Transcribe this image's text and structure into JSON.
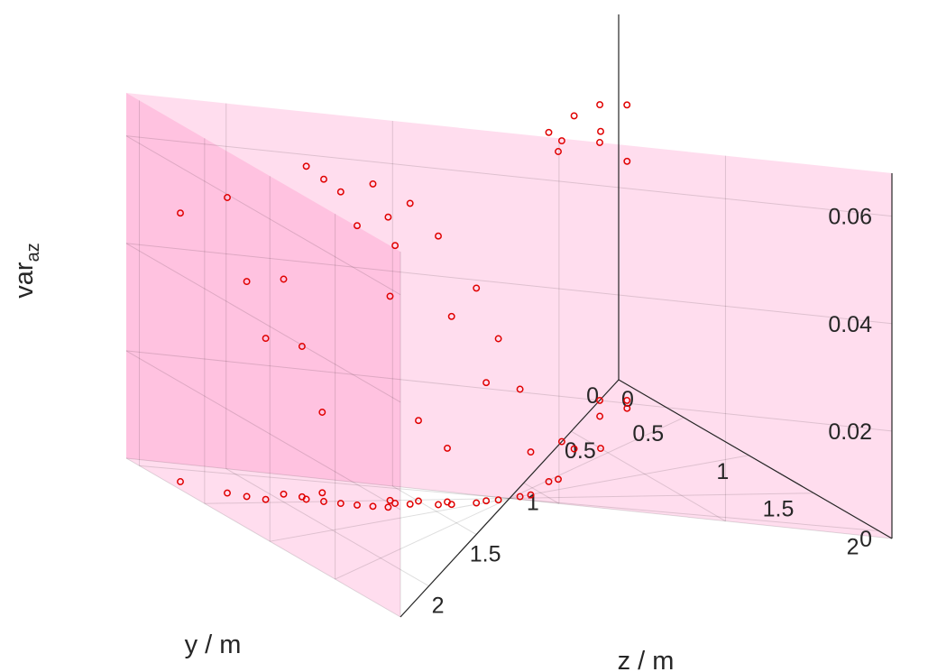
{
  "chart_data": {
    "type": "scatter",
    "title": "",
    "xlabel": "z / m",
    "ylabel": "y / m",
    "zlabel_base": "var",
    "zlabel_sub": "az",
    "xlim": [
      0,
      2.3
    ],
    "ylim": [
      0,
      2.1
    ],
    "zlim": [
      0,
      0.068
    ],
    "x_ticks": [
      "0",
      "0.5",
      "1",
      "1.5",
      "2"
    ],
    "y_ticks": [
      "0",
      "0.5",
      "1",
      "1.5",
      "2"
    ],
    "z_ticks": [
      "0",
      "0.02",
      "0.04",
      "0.06"
    ],
    "grid": true,
    "marker_color": "#e00000",
    "projection_wall_color": "#ff66b3",
    "series": [
      {
        "points": [
          [
            2.25,
            1.8,
            0.05
          ],
          [
            2.05,
            1.55,
            0.03
          ],
          [
            2.1,
            1.6,
            0.04
          ],
          [
            2.15,
            1.65,
            0.055
          ],
          [
            1.9,
            1.55,
            0.062
          ],
          [
            1.85,
            1.5,
            0.06
          ],
          [
            1.8,
            1.45,
            0.058
          ],
          [
            1.75,
            1.4,
            0.052
          ],
          [
            1.7,
            1.35,
            0.06
          ],
          [
            1.65,
            1.3,
            0.054
          ],
          [
            1.95,
            1.65,
            0.04
          ],
          [
            1.9,
            1.6,
            0.028
          ],
          [
            1.6,
            1.4,
            0.048
          ],
          [
            1.55,
            1.35,
            0.056
          ],
          [
            1.45,
            1.25,
            0.05
          ],
          [
            1.6,
            1.5,
            0.038
          ],
          [
            1.4,
            1.2,
            0.035
          ],
          [
            1.3,
            1.1,
            0.04
          ],
          [
            1.2,
            1.1,
            0.03
          ],
          [
            1.8,
            1.7,
            0.015
          ],
          [
            1.5,
            1.45,
            0.015
          ],
          [
            1.25,
            1.2,
            0.022
          ],
          [
            1.1,
            1.05,
            0.02
          ],
          [
            1.4,
            1.35,
            0.01
          ],
          [
            1.05,
            1.05,
            0.008
          ],
          [
            0.6,
            0.2,
            0.062
          ],
          [
            0.6,
            0.0,
            0.056
          ],
          [
            0.3,
            0.1,
            0.058
          ],
          [
            0.1,
            0.15,
            0.055
          ],
          [
            0.2,
            0.0,
            0.048
          ],
          [
            0.15,
            0.2,
            0.046
          ],
          [
            0.9,
            0.55,
            0.065
          ],
          [
            0.85,
            0.6,
            0.061
          ],
          [
            0.5,
            0.4,
            0.059
          ]
        ]
      }
    ]
  }
}
